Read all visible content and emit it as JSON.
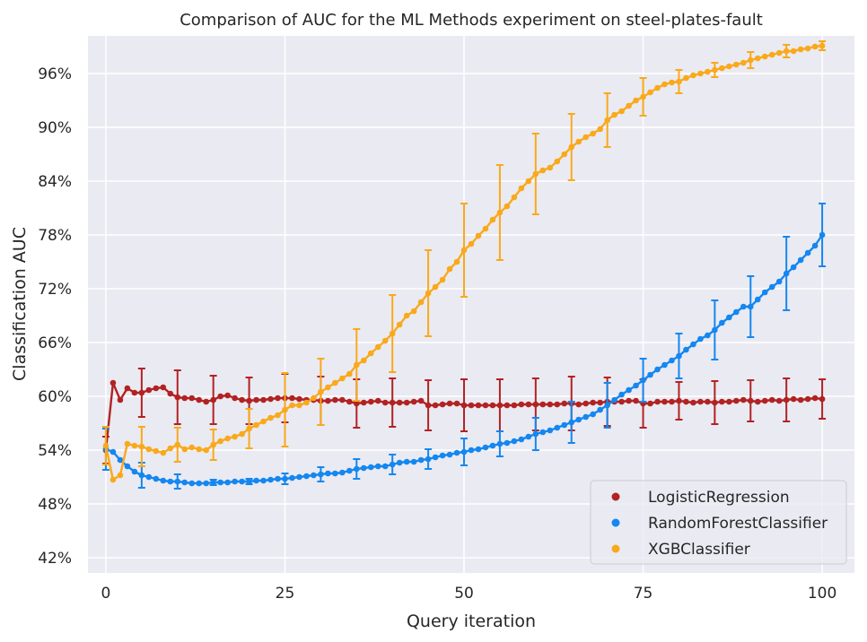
{
  "chart_data": {
    "type": "line",
    "title": "Comparison of AUC for the ML Methods experiment on steel-plates-fault",
    "xlabel": "Query iteration",
    "ylabel": "Classification AUC",
    "xlim": [
      -2.5,
      104.5
    ],
    "ylim": [
      0.403,
      1.002
    ],
    "x_ticks": [
      0,
      25,
      50,
      75,
      100
    ],
    "y_ticks": [
      0.42,
      0.48,
      0.54,
      0.6,
      0.66,
      0.72,
      0.78,
      0.84,
      0.9,
      0.96
    ],
    "y_tick_labels": [
      "42%",
      "48%",
      "54%",
      "60%",
      "66%",
      "72%",
      "78%",
      "84%",
      "90%",
      "96%"
    ],
    "x_tick_labels": [
      "0",
      "25",
      "50",
      "75",
      "100"
    ],
    "grid": true,
    "legend_position": "lower-right",
    "errorbar_every": 5,
    "series": [
      {
        "name": "LogisticRegression",
        "color": "#B22222",
        "errorbar_iterations": [
          0,
          5,
          10,
          15,
          20,
          25,
          30,
          35,
          40,
          45,
          50,
          55,
          60,
          65,
          70,
          75,
          80,
          85,
          90,
          95,
          100
        ],
        "errorbar_halfwidth": [
          0.015,
          0.027,
          0.03,
          0.027,
          0.026,
          0.027,
          0.027,
          0.027,
          0.027,
          0.028,
          0.029,
          0.029,
          0.029,
          0.03,
          0.027,
          0.027,
          0.021,
          0.024,
          0.023,
          0.024,
          0.022
        ],
        "values": [
          0.54,
          0.615,
          0.596,
          0.609,
          0.604,
          0.604,
          0.607,
          0.609,
          0.61,
          0.603,
          0.599,
          0.598,
          0.598,
          0.596,
          0.594,
          0.596,
          0.6,
          0.601,
          0.598,
          0.596,
          0.595,
          0.596,
          0.596,
          0.597,
          0.598,
          0.598,
          0.598,
          0.597,
          0.596,
          0.596,
          0.595,
          0.595,
          0.596,
          0.596,
          0.594,
          0.592,
          0.593,
          0.594,
          0.595,
          0.593,
          0.593,
          0.593,
          0.593,
          0.594,
          0.595,
          0.59,
          0.59,
          0.591,
          0.592,
          0.592,
          0.59,
          0.59,
          0.59,
          0.59,
          0.59,
          0.59,
          0.59,
          0.59,
          0.591,
          0.591,
          0.591,
          0.591,
          0.591,
          0.591,
          0.592,
          0.592,
          0.591,
          0.592,
          0.593,
          0.593,
          0.594,
          0.594,
          0.594,
          0.595,
          0.595,
          0.592,
          0.592,
          0.594,
          0.594,
          0.594,
          0.595,
          0.594,
          0.593,
          0.594,
          0.594,
          0.593,
          0.594,
          0.594,
          0.595,
          0.596,
          0.595,
          0.594,
          0.595,
          0.596,
          0.595,
          0.596,
          0.597,
          0.596,
          0.597,
          0.598,
          0.597
        ]
      },
      {
        "name": "RandomForestClassifier",
        "color": "#1487F0",
        "errorbar_iterations": [
          0,
          5,
          10,
          15,
          20,
          25,
          30,
          35,
          40,
          45,
          50,
          55,
          60,
          65,
          70,
          75,
          80,
          85,
          90,
          95,
          100
        ],
        "errorbar_halfwidth": [
          0.023,
          0.014,
          0.008,
          0.003,
          0.003,
          0.006,
          0.008,
          0.011,
          0.011,
          0.011,
          0.015,
          0.014,
          0.018,
          0.023,
          0.025,
          0.024,
          0.025,
          0.033,
          0.034,
          0.041,
          0.035
        ],
        "values": [
          0.541,
          0.538,
          0.529,
          0.522,
          0.516,
          0.512,
          0.51,
          0.508,
          0.506,
          0.505,
          0.505,
          0.504,
          0.503,
          0.503,
          0.503,
          0.504,
          0.504,
          0.504,
          0.505,
          0.505,
          0.505,
          0.506,
          0.506,
          0.507,
          0.508,
          0.508,
          0.509,
          0.51,
          0.511,
          0.512,
          0.513,
          0.514,
          0.514,
          0.515,
          0.517,
          0.519,
          0.52,
          0.521,
          0.522,
          0.522,
          0.524,
          0.526,
          0.527,
          0.527,
          0.529,
          0.53,
          0.532,
          0.534,
          0.535,
          0.537,
          0.538,
          0.54,
          0.541,
          0.543,
          0.545,
          0.547,
          0.548,
          0.55,
          0.552,
          0.555,
          0.558,
          0.56,
          0.562,
          0.565,
          0.568,
          0.571,
          0.574,
          0.577,
          0.58,
          0.585,
          0.59,
          0.596,
          0.602,
          0.607,
          0.612,
          0.618,
          0.624,
          0.63,
          0.635,
          0.64,
          0.645,
          0.652,
          0.658,
          0.664,
          0.668,
          0.674,
          0.682,
          0.688,
          0.694,
          0.7,
          0.7,
          0.708,
          0.716,
          0.722,
          0.728,
          0.737,
          0.744,
          0.752,
          0.76,
          0.768,
          0.78
        ]
      },
      {
        "name": "XGBClassifier",
        "color": "#F9A91B",
        "errorbar_iterations": [
          0,
          5,
          10,
          15,
          20,
          25,
          30,
          35,
          40,
          45,
          50,
          55,
          60,
          65,
          70,
          75,
          80,
          85,
          90,
          95,
          100
        ],
        "errorbar_halfwidth": [
          0.021,
          0.022,
          0.019,
          0.017,
          0.022,
          0.041,
          0.037,
          0.04,
          0.043,
          0.048,
          0.052,
          0.053,
          0.045,
          0.037,
          0.03,
          0.021,
          0.013,
          0.008,
          0.009,
          0.007,
          0.005
        ],
        "values": [
          0.545,
          0.507,
          0.512,
          0.547,
          0.545,
          0.544,
          0.541,
          0.539,
          0.537,
          0.542,
          0.546,
          0.541,
          0.543,
          0.541,
          0.54,
          0.546,
          0.55,
          0.553,
          0.555,
          0.558,
          0.564,
          0.568,
          0.572,
          0.576,
          0.579,
          0.585,
          0.59,
          0.59,
          0.593,
          0.598,
          0.605,
          0.61,
          0.615,
          0.62,
          0.625,
          0.635,
          0.64,
          0.648,
          0.655,
          0.662,
          0.67,
          0.68,
          0.69,
          0.695,
          0.705,
          0.715,
          0.722,
          0.73,
          0.742,
          0.75,
          0.763,
          0.77,
          0.779,
          0.787,
          0.797,
          0.805,
          0.812,
          0.822,
          0.832,
          0.84,
          0.848,
          0.852,
          0.855,
          0.862,
          0.87,
          0.878,
          0.884,
          0.889,
          0.893,
          0.898,
          0.908,
          0.914,
          0.918,
          0.924,
          0.93,
          0.934,
          0.939,
          0.944,
          0.948,
          0.95,
          0.951,
          0.955,
          0.958,
          0.96,
          0.962,
          0.964,
          0.966,
          0.968,
          0.97,
          0.972,
          0.975,
          0.977,
          0.979,
          0.981,
          0.983,
          0.985,
          0.985,
          0.987,
          0.988,
          0.99,
          0.991
        ]
      }
    ]
  }
}
